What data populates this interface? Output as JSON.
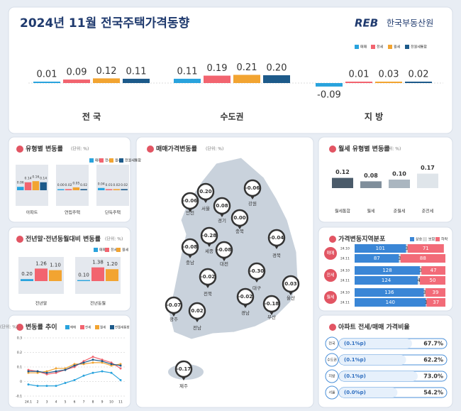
{
  "header": {
    "title": "2024년 11월 전국주택가격동향",
    "logo": "REB",
    "org": "한국부동산원"
  },
  "summary": {
    "series": [
      {
        "name": "매매",
        "color": "#29a3dd"
      },
      {
        "name": "전세",
        "color": "#f2646f"
      },
      {
        "name": "월세",
        "color": "#f2a431"
      },
      {
        "name": "전월세통합",
        "color": "#1d5a8a"
      }
    ],
    "groups": [
      {
        "label": "전 국",
        "values": [
          0.01,
          0.09,
          0.12,
          0.11
        ]
      },
      {
        "label": "수도권",
        "values": [
          0.11,
          0.19,
          0.21,
          0.2
        ],
        "value_labels": [
          "0.11",
          "0.19",
          "0.21",
          "0.20"
        ]
      },
      {
        "label": "지 방",
        "values": [
          -0.09,
          0.01,
          0.03,
          0.02
        ]
      }
    ]
  },
  "type_change": {
    "title": "유형별 변동률",
    "unit": "(단위: %)",
    "legend": [
      "매매",
      "전세",
      "월세",
      "전월세통합"
    ],
    "groups": [
      {
        "label": "아파트",
        "values": [
          0.06,
          0.14,
          0.16,
          0.14
        ]
      },
      {
        "label": "연립주택",
        "values": [
          0,
          0.02,
          0.05,
          0.02
        ],
        "value_labels": [
          "0.00",
          "0.02",
          "0.05",
          "0.02"
        ]
      },
      {
        "label": "단독주택",
        "values": [
          0.04,
          0.01,
          0.02,
          0.02
        ]
      }
    ]
  },
  "yoy": {
    "title": "전년말·전년동월대비 변동률",
    "unit": "(단위: %)",
    "legend": [
      "매매",
      "전세",
      "월세"
    ],
    "groups": [
      {
        "label": "전년말",
        "values": [
          0.2,
          1.26,
          1.1
        ],
        "value_labels": [
          "0.20",
          "1.26",
          "1.10"
        ]
      },
      {
        "label": "전년동월",
        "values": [
          0.1,
          1.38,
          1.2
        ],
        "value_labels": [
          "0.10",
          "1.38",
          "1.20"
        ]
      }
    ]
  },
  "trend": {
    "title": "변동률 추이",
    "unit": "(단위: %)",
    "categories": [
      "24.1",
      "2",
      "3",
      "4",
      "5",
      "6",
      "7",
      "8",
      "9",
      "10",
      "11"
    ],
    "ylim": [
      -0.1,
      0.3
    ],
    "yticks": [
      -0.1,
      0,
      0.1,
      0.2,
      0.3
    ],
    "series": [
      {
        "name": "매매",
        "values": [
          -0.02,
          -0.03,
          -0.03,
          -0.03,
          -0.01,
          0.01,
          0.04,
          0.06,
          0.07,
          0.06,
          0.01
        ]
      },
      {
        "name": "전세",
        "values": [
          0.08,
          0.07,
          0.05,
          0.06,
          0.08,
          0.1,
          0.14,
          0.17,
          0.15,
          0.13,
          0.09
        ]
      },
      {
        "name": "월세",
        "values": [
          0.06,
          0.06,
          0.07,
          0.09,
          0.09,
          0.12,
          0.12,
          0.13,
          0.13,
          0.11,
          0.12
        ]
      },
      {
        "name": "전월세통합",
        "values": [
          0.07,
          0.07,
          0.06,
          0.07,
          0.08,
          0.11,
          0.13,
          0.15,
          0.14,
          0.12,
          0.11
        ]
      }
    ]
  },
  "map": {
    "title": "매매가격변동률",
    "unit": "(단위: %)",
    "pins": [
      {
        "region": "인천",
        "value": -0.06
      },
      {
        "region": "서울",
        "value": 0.2,
        "value_label": "0.20"
      },
      {
        "region": "경기",
        "value": 0.08
      },
      {
        "region": "강원",
        "value": -0.06
      },
      {
        "region": "충북",
        "value": 0,
        "value_label": "0.00"
      },
      {
        "region": "세종",
        "value": -0.28
      },
      {
        "region": "충남",
        "value": -0.08
      },
      {
        "region": "대전",
        "value": -0.08
      },
      {
        "region": "경북",
        "value": -0.04
      },
      {
        "region": "전북",
        "value": -0.02
      },
      {
        "region": "대구",
        "value": -0.3,
        "value_label": "-0.30"
      },
      {
        "region": "울산",
        "value": 0.03
      },
      {
        "region": "광주",
        "value": -0.07
      },
      {
        "region": "경남",
        "value": -0.02
      },
      {
        "region": "부산",
        "value": -0.18
      },
      {
        "region": "전남",
        "value": 0.02
      },
      {
        "region": "제주",
        "value": -0.17
      }
    ]
  },
  "rent_type": {
    "title": "월세 유형별 변동률",
    "unit": "(단위: %)",
    "categories": [
      "월세통합",
      "월세",
      "준월세",
      "준전세"
    ],
    "values": [
      0.12,
      0.08,
      0.1,
      0.17
    ],
    "value_labels": [
      "0.12",
      "0.08",
      "0.10",
      "0.17"
    ],
    "colors": [
      "#4b5b6a",
      "#7f8e9b",
      "#aab6c0",
      "#dfe5ea"
    ]
  },
  "distribution": {
    "title": "가격변동지역분포",
    "legend": [
      "상승",
      "보합",
      "하락"
    ],
    "groups": [
      {
        "label": "매매",
        "rows": [
          {
            "period": "24.10",
            "values": [
              101,
              3,
              71
            ]
          },
          {
            "period": "24.11",
            "values": [
              87,
              3,
              88
            ]
          }
        ]
      },
      {
        "label": "전세",
        "rows": [
          {
            "period": "24.10",
            "values": [
              128,
              3,
              47
            ]
          },
          {
            "period": "24.11",
            "values": [
              124,
              4,
              50
            ]
          }
        ]
      },
      {
        "label": "월세",
        "rows": [
          {
            "period": "24.10",
            "values": [
              136,
              3,
              39
            ]
          },
          {
            "period": "24.11",
            "values": [
              140,
              1,
              37
            ]
          }
        ]
      }
    ]
  },
  "ratio": {
    "title": "아파트 전세/매매 가격비율",
    "rows": [
      {
        "region": "전국",
        "change": "(0.1%p)",
        "ratio": 67.7,
        "ratio_label": "67.7%"
      },
      {
        "region": "수도권",
        "change": "(0.1%p)",
        "ratio": 62.2,
        "ratio_label": "62.2%"
      },
      {
        "region": "지방",
        "change": "(0.1%p)",
        "ratio": 73.0,
        "ratio_label": "73.0%"
      },
      {
        "region": "서울",
        "change": "(0.0%p)",
        "ratio": 54.2,
        "ratio_label": "54.2%"
      }
    ]
  }
}
